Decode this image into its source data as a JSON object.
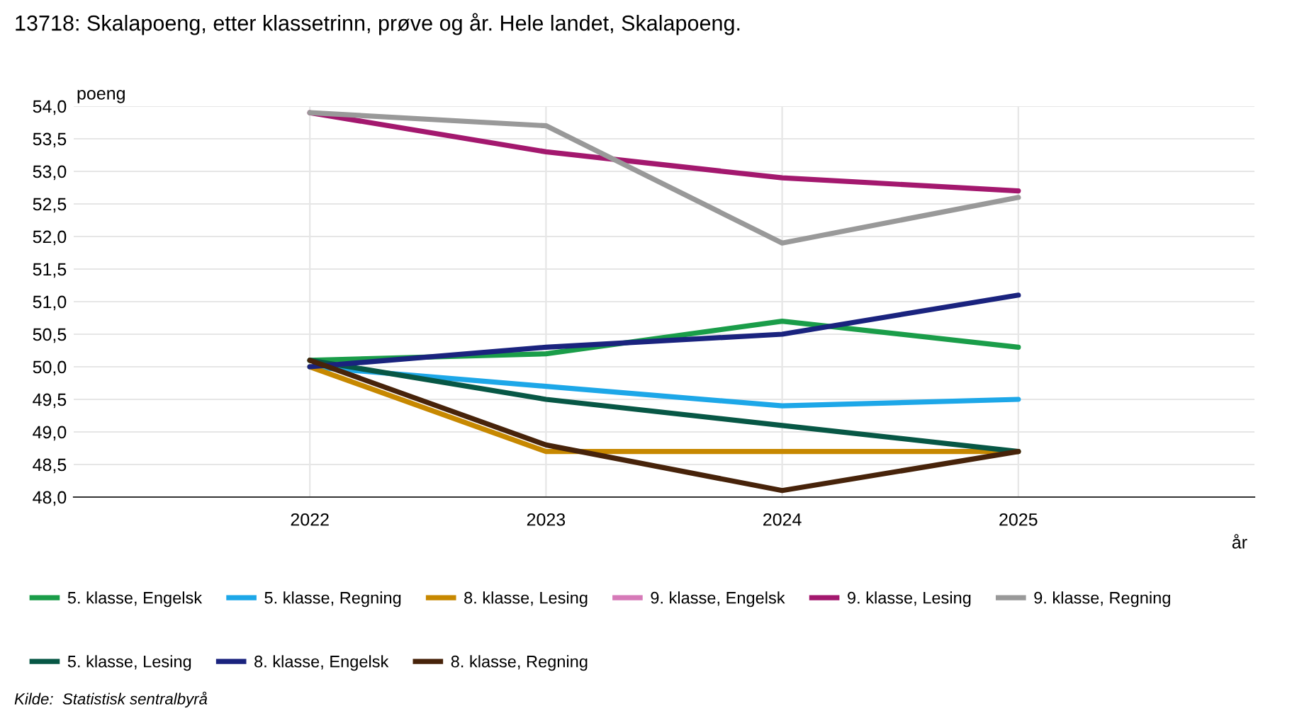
{
  "chart_data": {
    "type": "line",
    "title": "13718: Skalapoeng, etter klassetrinn, prøve og år. Hele landet, Skalapoeng.",
    "xlabel": "år",
    "ylabel": "poeng",
    "x": [
      2022,
      2023,
      2024,
      2025
    ],
    "xlim": [
      2021,
      2026
    ],
    "xticks": [
      2022,
      2023,
      2024,
      2025
    ],
    "ylim": [
      48,
      54
    ],
    "yticks": [
      {
        "value": 48,
        "label": "48,0"
      },
      {
        "value": 48.5,
        "label": "48,5"
      },
      {
        "value": 49,
        "label": "49,0"
      },
      {
        "value": 49.5,
        "label": "49,5"
      },
      {
        "value": 50,
        "label": "50,0"
      },
      {
        "value": 50.5,
        "label": "50,5"
      },
      {
        "value": 51,
        "label": "51,0"
      },
      {
        "value": 51.5,
        "label": "51,5"
      },
      {
        "value": 52,
        "label": "52,0"
      },
      {
        "value": 52.5,
        "label": "52,5"
      },
      {
        "value": 53,
        "label": "53,0"
      },
      {
        "value": 53.5,
        "label": "53,5"
      },
      {
        "value": 54,
        "label": "54,0"
      }
    ],
    "grid": true,
    "legend": "bottom",
    "marker": "none",
    "line_style": "solid",
    "annotations": [
      "Kilde:  Statistisk sentralbyrå"
    ],
    "series": [
      {
        "name": "5. klasse, Engelsk",
        "color": "#1a9d49",
        "values": [
          50.1,
          50.2,
          50.7,
          50.3
        ]
      },
      {
        "name": "5. klasse, Regning",
        "color": "#1da7e8",
        "values": [
          50.0,
          49.7,
          49.4,
          49.5
        ]
      },
      {
        "name": "8. klasse, Lesing",
        "color": "#c78800",
        "values": [
          50.0,
          48.7,
          48.7,
          48.7
        ]
      },
      {
        "name": "9. klasse, Engelsk",
        "color": "#d67ab8",
        "values": [
          null,
          null,
          null,
          null
        ]
      },
      {
        "name": "9. klasse, Lesing",
        "color": "#a3186e",
        "values": [
          53.9,
          53.3,
          52.9,
          52.7
        ]
      },
      {
        "name": "9. klasse, Regning",
        "color": "#999999",
        "values": [
          53.9,
          53.7,
          51.9,
          52.6
        ]
      },
      {
        "name": "5. klasse, Lesing",
        "color": "#075745",
        "values": [
          50.1,
          49.5,
          49.1,
          48.7
        ]
      },
      {
        "name": "8. klasse, Engelsk",
        "color": "#1a237e",
        "values": [
          50.0,
          50.3,
          50.5,
          51.1
        ]
      },
      {
        "name": "8. klasse, Regning",
        "color": "#47230a",
        "values": [
          50.1,
          48.8,
          48.1,
          48.7
        ]
      }
    ]
  }
}
